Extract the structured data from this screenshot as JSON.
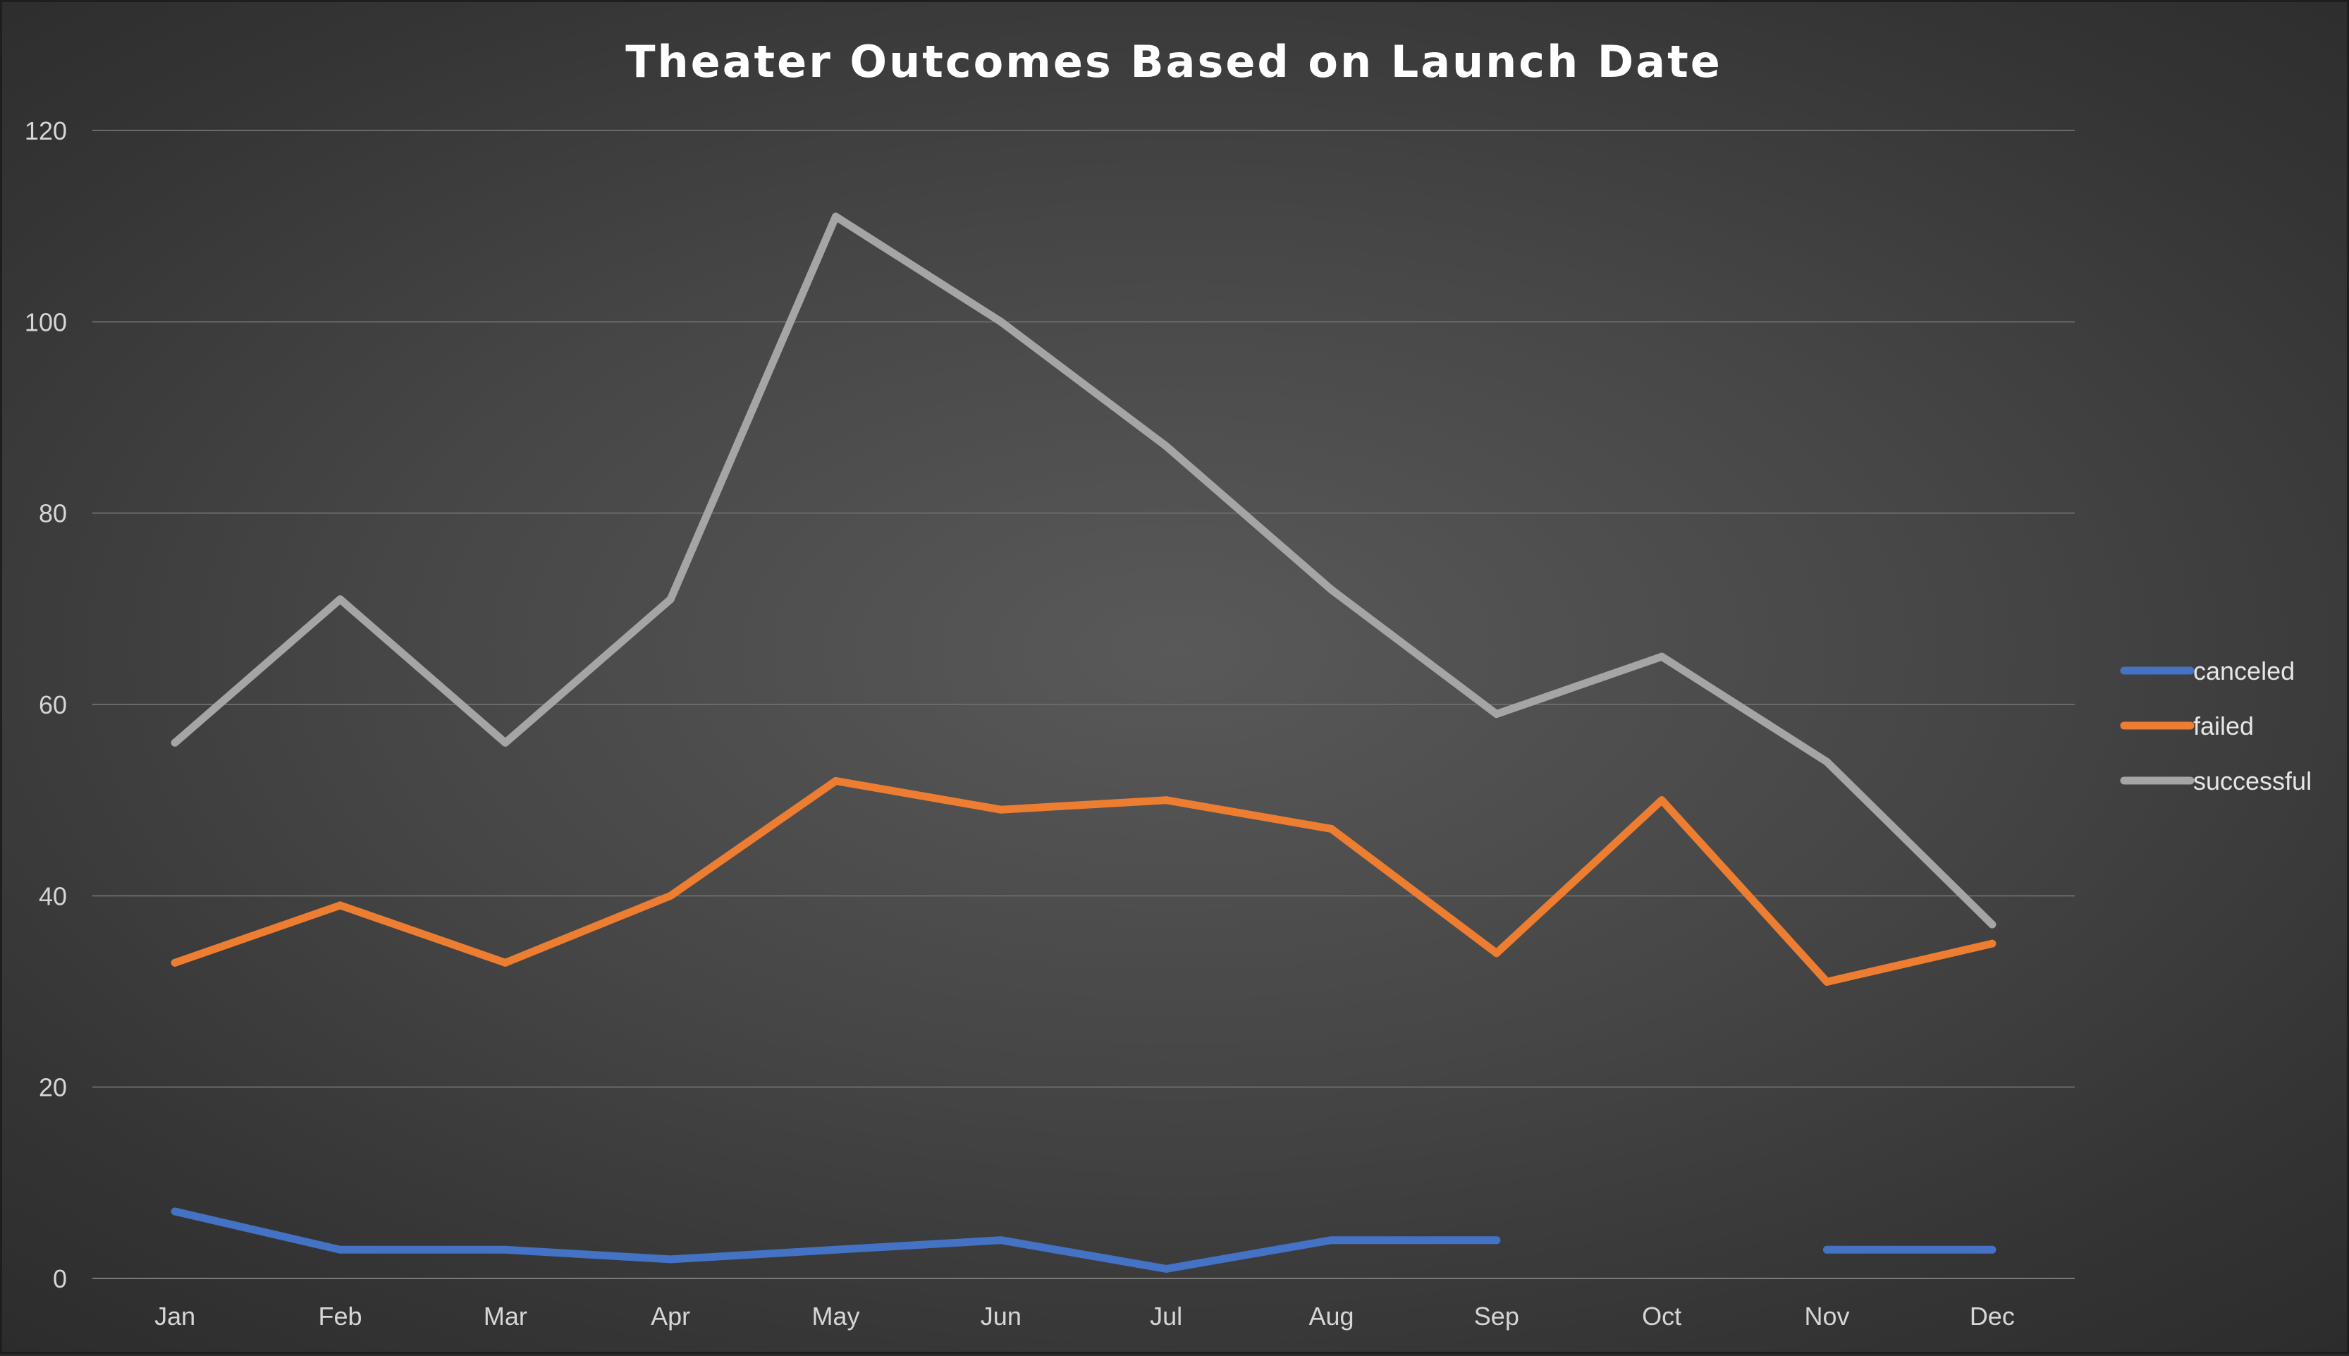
{
  "chart_data": {
    "type": "line",
    "title": "Theater Outcomes Based on Launch Date",
    "xlabel": "",
    "ylabel": "",
    "categories": [
      "Jan",
      "Feb",
      "Mar",
      "Apr",
      "May",
      "Jun",
      "Jul",
      "Aug",
      "Sep",
      "Oct",
      "Nov",
      "Dec"
    ],
    "ylim": [
      0,
      120
    ],
    "yticks": [
      "0",
      "20",
      "40",
      "60",
      "80",
      "100",
      "120"
    ],
    "grid": true,
    "legend_position": "right",
    "series": [
      {
        "name": "canceled",
        "color": "#4472c4",
        "values": [
          7,
          3,
          3,
          2,
          3,
          4,
          1,
          4,
          4,
          null,
          3,
          3
        ]
      },
      {
        "name": "failed",
        "color": "#ed7d31",
        "values": [
          33,
          39,
          33,
          40,
          52,
          49,
          50,
          47,
          34,
          50,
          31,
          35
        ]
      },
      {
        "name": "successful",
        "color": "#a5a5a5",
        "values": [
          56,
          71,
          56,
          71,
          111,
          100,
          87,
          72,
          59,
          65,
          54,
          37
        ]
      }
    ]
  }
}
